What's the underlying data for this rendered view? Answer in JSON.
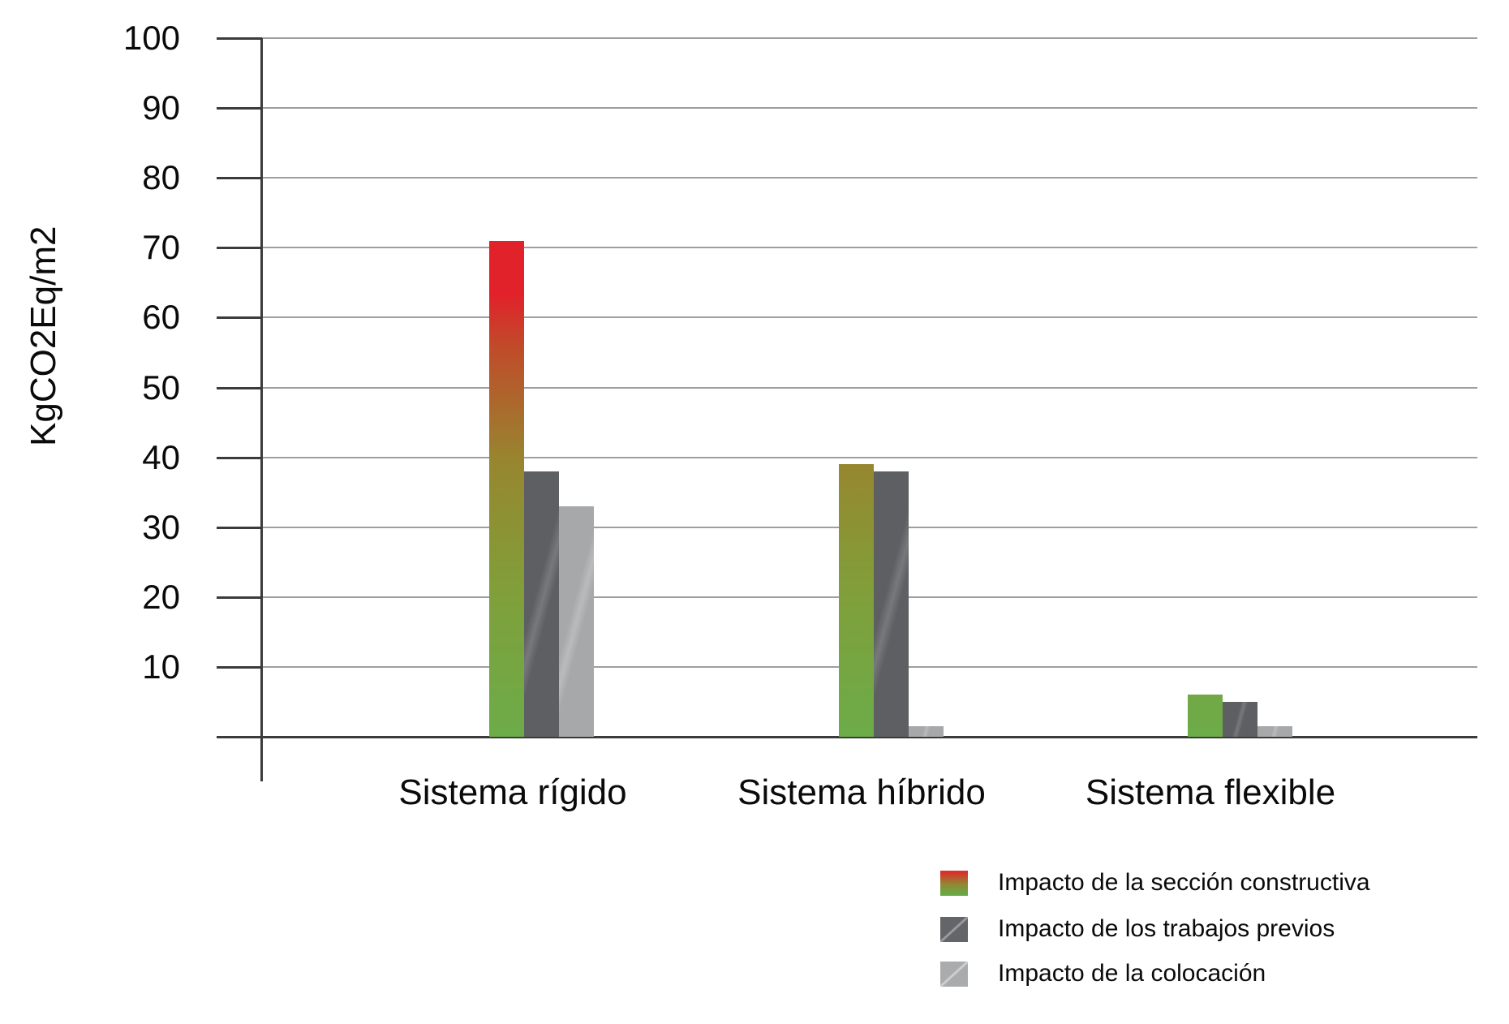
{
  "chart_data": {
    "type": "bar",
    "ylabel": "KgCO2Eq/m2",
    "ylim": [
      0,
      100
    ],
    "ytick_step": 10,
    "yticks": [
      100,
      90,
      80,
      70,
      60,
      50,
      40,
      30,
      20,
      10
    ],
    "grid": "horizontal",
    "legend_position": "bottom-right",
    "categories": [
      "Sistema rígido",
      "Sistema híbrido",
      "Sistema flexible"
    ],
    "series": [
      {
        "name": "Impacto de la sección constructiva",
        "style": "gradient",
        "values": [
          71,
          39,
          6
        ]
      },
      {
        "name": "Impacto de los trabajos previos",
        "style": "dark",
        "values": [
          38,
          38,
          5
        ]
      },
      {
        "name": "Impacto de la colocación",
        "style": "light",
        "values": [
          33,
          1.5,
          1.5
        ]
      }
    ],
    "colors": {
      "gradient_bottom_green": "#6CAC49",
      "gradient_mid_olive": "#97862F",
      "gradient_top_red": "#E1222A",
      "dark_gray_bar": "#5D5F62",
      "light_gray_bar": "#A7A8AA",
      "gridline": "#9E9E9E",
      "axis": "#3B3B3B"
    }
  }
}
